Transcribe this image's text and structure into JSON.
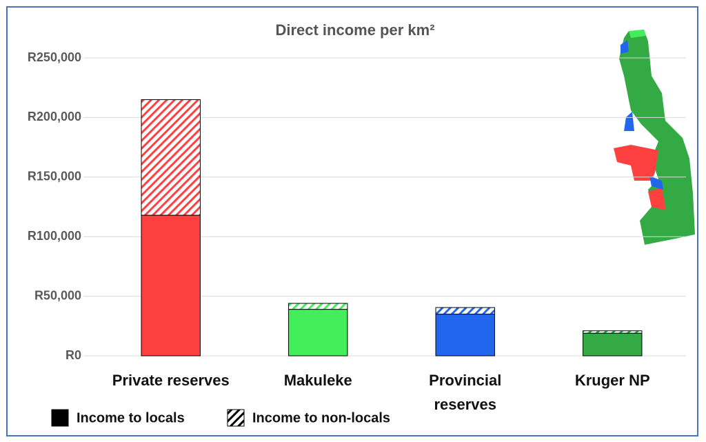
{
  "chart_data": {
    "type": "stacked-bar",
    "title": "Direct income per km²",
    "categories": [
      "Private reserves",
      "Makuleke",
      "Provincial reserves",
      "Kruger NP"
    ],
    "colors": [
      "#ff4040",
      "#44ee5a",
      "#2266ee",
      "#33aa44"
    ],
    "series": [
      {
        "name": "Income to locals",
        "pattern": "solid",
        "values": [
          118000,
          39000,
          35000,
          19000
        ]
      },
      {
        "name": "Income to non-locals",
        "pattern": "hatched",
        "values": [
          97000,
          5000,
          5500,
          2000
        ]
      }
    ],
    "legend_color": "#000000",
    "ylim": [
      0,
      250000
    ],
    "yticks": [
      {
        "value": 0,
        "label": "R0"
      },
      {
        "value": 50000,
        "label": "R50,000"
      },
      {
        "value": 100000,
        "label": "R100,000"
      },
      {
        "value": 150000,
        "label": "R150,000"
      },
      {
        "value": 200000,
        "label": "R200,000"
      },
      {
        "value": 250000,
        "label": "R250,000"
      }
    ],
    "grid": true
  }
}
